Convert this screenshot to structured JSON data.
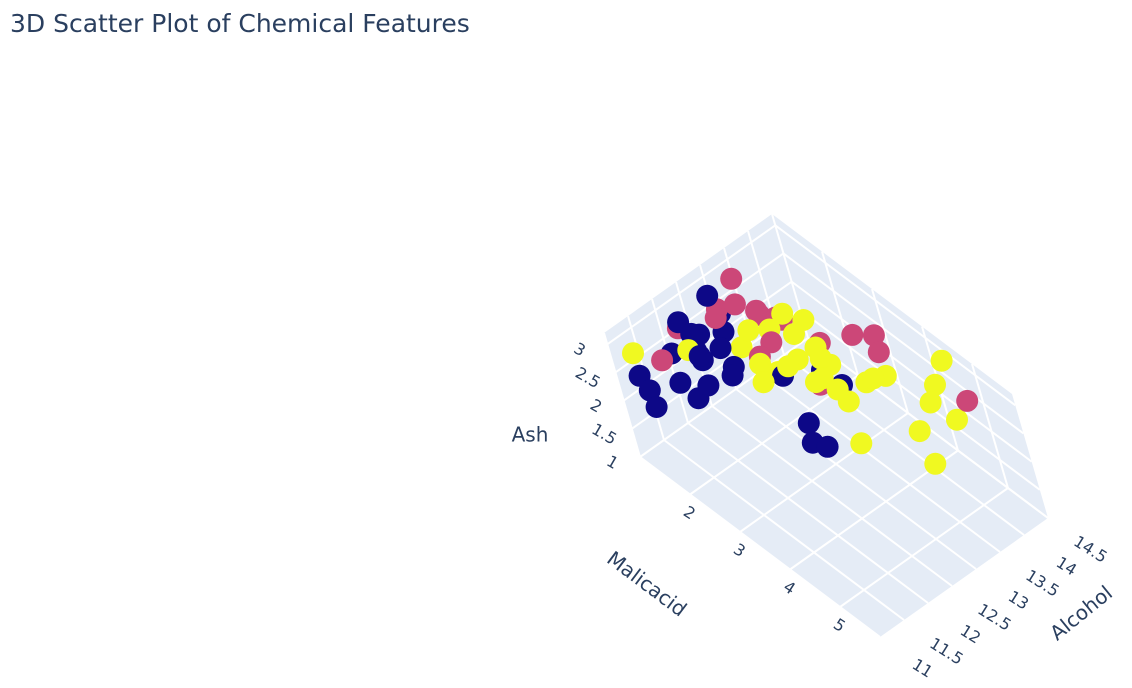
{
  "chart_data": {
    "type": "scatter",
    "title": "3D Scatter Plot of Chemical Features",
    "axes": {
      "x": {
        "label": "Alcohol",
        "ticks": [
          "11",
          "11.5",
          "12",
          "12.5",
          "13",
          "13.5",
          "14",
          "14.5"
        ],
        "range": [
          11,
          14.5
        ]
      },
      "y": {
        "label": "Malicacid",
        "ticks": [
          "2",
          "3",
          "4",
          "5"
        ],
        "range": [
          1,
          5.8
        ]
      },
      "z": {
        "label": "Ash",
        "ticks": [
          "1",
          "1.5",
          "2",
          "2.5",
          "3"
        ],
        "range": [
          1,
          3.2
        ]
      }
    },
    "grid": true,
    "legend": "none",
    "colors": {
      "dark_blue": "#0d0887",
      "magenta": "#cc4778",
      "yellow": "#f0f921",
      "grid": "#ffffff",
      "pane": "#e5ecf6"
    },
    "points": [
      {
        "x": 13.2,
        "y": 1.4,
        "z": 3.1,
        "group": "magenta"
      },
      {
        "x": 12.6,
        "y": 1.6,
        "z": 2.9,
        "group": "magenta"
      },
      {
        "x": 12.8,
        "y": 1.4,
        "z": 2.8,
        "group": "magenta"
      },
      {
        "x": 13.0,
        "y": 1.6,
        "z": 2.9,
        "group": "magenta"
      },
      {
        "x": 13.2,
        "y": 1.8,
        "z": 2.8,
        "group": "magenta"
      },
      {
        "x": 13.3,
        "y": 1.7,
        "z": 2.6,
        "group": "magenta"
      },
      {
        "x": 13.5,
        "y": 1.8,
        "z": 2.5,
        "group": "magenta"
      },
      {
        "x": 12.9,
        "y": 2.0,
        "z": 2.3,
        "group": "magenta"
      },
      {
        "x": 13.6,
        "y": 1.8,
        "z": 2.4,
        "group": "magenta"
      },
      {
        "x": 13.1,
        "y": 2.1,
        "z": 2.5,
        "group": "magenta"
      },
      {
        "x": 13.8,
        "y": 2.3,
        "z": 2.2,
        "group": "magenta"
      },
      {
        "x": 14.2,
        "y": 2.6,
        "z": 2.3,
        "group": "magenta"
      },
      {
        "x": 14.3,
        "y": 3.0,
        "z": 2.5,
        "group": "magenta"
      },
      {
        "x": 14.3,
        "y": 3.0,
        "z": 2.2,
        "group": "magenta"
      },
      {
        "x": 13.7,
        "y": 2.5,
        "z": 2.0,
        "group": "magenta"
      },
      {
        "x": 14.3,
        "y": 4.9,
        "z": 2.6,
        "group": "magenta"
      },
      {
        "x": 11.8,
        "y": 1.1,
        "z": 2.3,
        "group": "magenta"
      },
      {
        "x": 12.3,
        "y": 1.0,
        "z": 2.5,
        "group": "magenta"
      },
      {
        "x": 13.4,
        "y": 2.6,
        "z": 1.9,
        "group": "magenta"
      },
      {
        "x": 12.0,
        "y": 1.1,
        "z": 2.3,
        "group": "dark_blue"
      },
      {
        "x": 12.3,
        "y": 1.3,
        "z": 2.3,
        "group": "dark_blue"
      },
      {
        "x": 12.5,
        "y": 1.2,
        "z": 2.4,
        "group": "dark_blue"
      },
      {
        "x": 12.3,
        "y": 1.4,
        "z": 2.2,
        "group": "dark_blue"
      },
      {
        "x": 12.3,
        "y": 1.3,
        "z": 2.6,
        "group": "dark_blue"
      },
      {
        "x": 12.6,
        "y": 1.5,
        "z": 2.3,
        "group": "dark_blue"
      },
      {
        "x": 12.8,
        "y": 1.4,
        "z": 2.4,
        "group": "dark_blue"
      },
      {
        "x": 12.2,
        "y": 1.2,
        "z": 2.8,
        "group": "dark_blue"
      },
      {
        "x": 12.9,
        "y": 1.3,
        "z": 2.6,
        "group": "dark_blue"
      },
      {
        "x": 12.7,
        "y": 1.4,
        "z": 3.1,
        "group": "dark_blue"
      },
      {
        "x": 11.8,
        "y": 1.4,
        "z": 2.1,
        "group": "dark_blue"
      },
      {
        "x": 11.9,
        "y": 1.6,
        "z": 1.9,
        "group": "dark_blue"
      },
      {
        "x": 12.6,
        "y": 1.7,
        "z": 2.1,
        "group": "dark_blue"
      },
      {
        "x": 12.2,
        "y": 1.5,
        "z": 2.4,
        "group": "dark_blue"
      },
      {
        "x": 12.0,
        "y": 1.8,
        "z": 2.2,
        "group": "dark_blue"
      },
      {
        "x": 11.4,
        "y": 1.0,
        "z": 2.2,
        "group": "dark_blue"
      },
      {
        "x": 11.3,
        "y": 1.3,
        "z": 2.2,
        "group": "dark_blue"
      },
      {
        "x": 11.2,
        "y": 1.5,
        "z": 2.1,
        "group": "dark_blue"
      },
      {
        "x": 12.4,
        "y": 1.9,
        "z": 2.2,
        "group": "dark_blue"
      },
      {
        "x": 13.0,
        "y": 2.3,
        "z": 2.1,
        "group": "dark_blue"
      },
      {
        "x": 13.5,
        "y": 2.6,
        "z": 2.1,
        "group": "dark_blue"
      },
      {
        "x": 13.5,
        "y": 3.0,
        "z": 2.1,
        "group": "dark_blue"
      },
      {
        "x": 12.6,
        "y": 3.2,
        "z": 2.1,
        "group": "dark_blue"
      },
      {
        "x": 12.3,
        "y": 3.6,
        "z": 2.2,
        "group": "dark_blue"
      },
      {
        "x": 12.4,
        "y": 3.8,
        "z": 2.2,
        "group": "dark_blue"
      },
      {
        "x": 12.1,
        "y": 1.4,
        "z": 2.5,
        "group": "yellow"
      },
      {
        "x": 11.4,
        "y": 1.0,
        "z": 2.6,
        "group": "yellow"
      },
      {
        "x": 12.9,
        "y": 1.9,
        "z": 2.7,
        "group": "yellow"
      },
      {
        "x": 13.2,
        "y": 2.0,
        "z": 2.6,
        "group": "yellow"
      },
      {
        "x": 13.5,
        "y": 2.0,
        "z": 2.7,
        "group": "yellow"
      },
      {
        "x": 13.4,
        "y": 2.3,
        "z": 2.6,
        "group": "yellow"
      },
      {
        "x": 13.2,
        "y": 2.5,
        "z": 2.4,
        "group": "yellow"
      },
      {
        "x": 13.7,
        "y": 2.2,
        "z": 2.6,
        "group": "yellow"
      },
      {
        "x": 13.0,
        "y": 2.5,
        "z": 2.4,
        "group": "yellow"
      },
      {
        "x": 13.5,
        "y": 2.6,
        "z": 2.5,
        "group": "yellow"
      },
      {
        "x": 13.4,
        "y": 2.8,
        "z": 2.5,
        "group": "yellow"
      },
      {
        "x": 13.6,
        "y": 2.7,
        "z": 2.2,
        "group": "yellow"
      },
      {
        "x": 13.2,
        "y": 3.0,
        "z": 2.4,
        "group": "yellow"
      },
      {
        "x": 13.0,
        "y": 2.2,
        "z": 2.1,
        "group": "yellow"
      },
      {
        "x": 12.8,
        "y": 2.1,
        "z": 2.3,
        "group": "yellow"
      },
      {
        "x": 13.2,
        "y": 2.8,
        "z": 2.2,
        "group": "yellow"
      },
      {
        "x": 13.2,
        "y": 3.3,
        "z": 2.4,
        "group": "yellow"
      },
      {
        "x": 13.8,
        "y": 3.4,
        "z": 2.3,
        "group": "yellow"
      },
      {
        "x": 13.8,
        "y": 3.2,
        "z": 2.1,
        "group": "yellow"
      },
      {
        "x": 13.4,
        "y": 3.2,
        "z": 2.0,
        "group": "yellow"
      },
      {
        "x": 14.1,
        "y": 3.3,
        "z": 2.1,
        "group": "yellow"
      },
      {
        "x": 14.5,
        "y": 3.9,
        "z": 2.1,
        "group": "yellow"
      },
      {
        "x": 14.2,
        "y": 4.1,
        "z": 2.1,
        "group": "yellow"
      },
      {
        "x": 14.3,
        "y": 4.5,
        "z": 2.0,
        "group": "yellow"
      },
      {
        "x": 13.8,
        "y": 4.2,
        "z": 1.9,
        "group": "yellow"
      },
      {
        "x": 13.0,
        "y": 3.8,
        "z": 1.9,
        "group": "yellow"
      },
      {
        "x": 13.5,
        "y": 4.8,
        "z": 1.9,
        "group": "yellow"
      },
      {
        "x": 14.6,
        "y": 4.1,
        "z": 2.6,
        "group": "yellow"
      },
      {
        "x": 12.9,
        "y": 1.6,
        "z": 2.2,
        "group": "yellow"
      },
      {
        "x": 12.7,
        "y": 2.2,
        "z": 2.1,
        "group": "yellow"
      }
    ]
  }
}
